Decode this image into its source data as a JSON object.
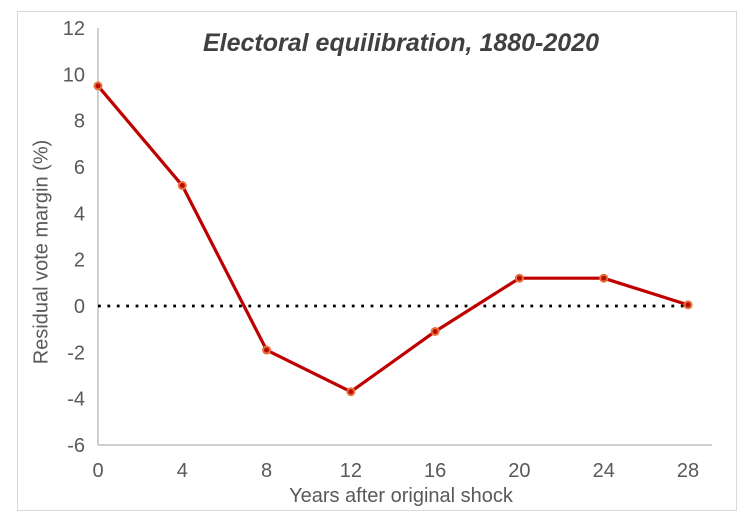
{
  "chart_data": {
    "type": "line",
    "title": "Electoral equilibration, 1880-2020",
    "xlabel": "Years after original shock",
    "ylabel": "Residual vote margin (%)",
    "x": [
      0,
      4,
      8,
      12,
      16,
      20,
      24,
      28
    ],
    "series": [
      {
        "name": "Residual vote margin",
        "values": [
          9.5,
          5.2,
          -1.9,
          -3.7,
          -1.1,
          1.2,
          1.2,
          0.05
        ]
      }
    ],
    "xlim": [
      0,
      28
    ],
    "ylim": [
      -6,
      12
    ],
    "x_ticks": [
      0,
      4,
      8,
      12,
      16,
      20,
      24,
      28
    ],
    "y_ticks": [
      12,
      10,
      8,
      6,
      4,
      2,
      0,
      -2,
      -4,
      -6
    ],
    "grid": false,
    "legend_position": "none",
    "zero_reference_line": {
      "y": 0,
      "style": "dotted",
      "color": "#000000"
    },
    "colors": {
      "line": "#c00000",
      "marker_fill": "#bb0a00",
      "marker_border": "#e8723d",
      "axis_line": "#bfbfbf",
      "tick_label": "#595959",
      "axis_title": "#595959",
      "title": "#404040",
      "frame_border": "#d9d9d9",
      "background": "#ffffff"
    }
  }
}
